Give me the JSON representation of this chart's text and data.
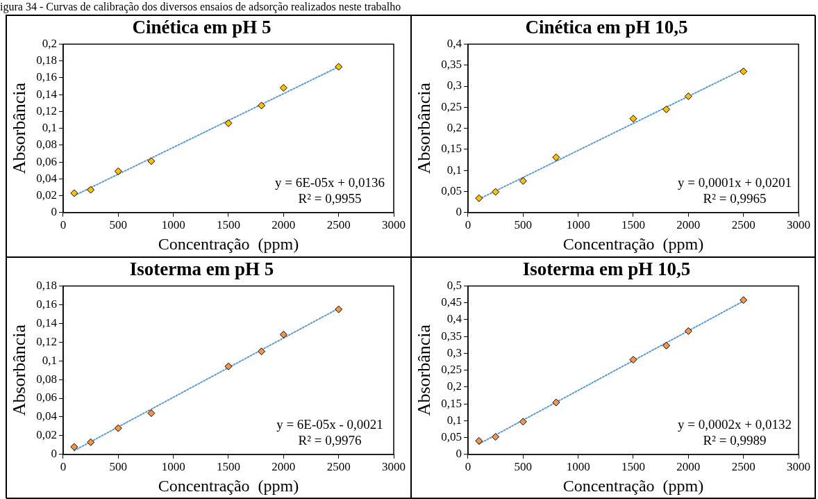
{
  "chart_data": [
    {
      "type": "scatter",
      "title": "Cinética em pH 5",
      "xlabel": "Concentração  (ppm)",
      "ylabel": "Absorbância",
      "annotations": [
        "igura 34 - Curvas de calibração dos diversos ensaios de adsorção realizados neste trabalho",
        "y = 6E-05x + 0,0136",
        "R² = 0,9955"
      ],
      "series": [
        {
          "type": "scatter",
          "marker": "diamond",
          "color": "#ffc000",
          "x": [
            100,
            250,
            500,
            800,
            1500,
            1800,
            2000,
            2500
          ],
          "values": [
            0.023,
            0.027,
            0.049,
            0.061,
            0.106,
            0.127,
            0.148,
            0.173
          ]
        },
        {
          "type": "line",
          "marker": "none",
          "line_style": "dotted",
          "color": "#5b9bd5",
          "x": [
            100,
            2500
          ],
          "values": [
            0.02,
            0.173
          ]
        }
      ],
      "xlim": [
        0,
        3000
      ],
      "xticks": [
        0,
        500,
        1000,
        1500,
        2000,
        2500,
        3000
      ],
      "ylim": [
        0,
        0.2
      ],
      "yticks": [
        {
          "value": 0,
          "label": "0"
        },
        {
          "value": 0.02,
          "label": "0,02"
        },
        {
          "value": 0.04,
          "label": "0,04"
        },
        {
          "value": 0.06,
          "label": "0,06"
        },
        {
          "value": 0.08,
          "label": "0,08"
        },
        {
          "value": 0.1,
          "label": "0,1"
        },
        {
          "value": 0.12,
          "label": "0,12"
        },
        {
          "value": 0.14,
          "label": "0,14"
        },
        {
          "value": 0.16,
          "label": "0,16"
        },
        {
          "value": 0.18,
          "label": "0,18"
        },
        {
          "value": 0.2,
          "label": "0,2"
        }
      ],
      "grid": false,
      "legend": false
    },
    {
      "type": "scatter",
      "title": "Cinética em pH 10,5",
      "xlabel": "Concentração  (ppm)",
      "ylabel": "Absorbância",
      "annotations": [
        "y = 0,0001x + 0,0201",
        "R² = 0,9965"
      ],
      "series": [
        {
          "type": "scatter",
          "marker": "diamond",
          "color": "#ffc000",
          "x": [
            100,
            250,
            500,
            800,
            1500,
            1800,
            2000,
            2500
          ],
          "values": [
            0.034,
            0.049,
            0.075,
            0.131,
            0.223,
            0.245,
            0.276,
            0.335
          ]
        },
        {
          "type": "line",
          "marker": "none",
          "line_style": "dotted",
          "color": "#5b9bd5",
          "x": [
            100,
            2500
          ],
          "values": [
            0.032,
            0.34
          ]
        }
      ],
      "xlim": [
        0,
        3000
      ],
      "xticks": [
        0,
        500,
        1000,
        1500,
        2000,
        2500,
        3000
      ],
      "ylim": [
        0,
        0.4
      ],
      "yticks": [
        {
          "value": 0,
          "label": "0"
        },
        {
          "value": 0.05,
          "label": "0,05"
        },
        {
          "value": 0.1,
          "label": "0,1"
        },
        {
          "value": 0.15,
          "label": "0,15"
        },
        {
          "value": 0.2,
          "label": "0,2"
        },
        {
          "value": 0.25,
          "label": "0,25"
        },
        {
          "value": 0.3,
          "label": "0,3"
        },
        {
          "value": 0.35,
          "label": "0,35"
        },
        {
          "value": 0.4,
          "label": "0,4"
        }
      ],
      "grid": false,
      "legend": false
    },
    {
      "type": "scatter",
      "title": "Isoterma em pH 5",
      "xlabel": "Concentração  (ppm)",
      "ylabel": "Absorbância",
      "annotations": [
        "y = 6E-05x - 0,0021",
        "R² = 0,9976"
      ],
      "series": [
        {
          "type": "scatter",
          "marker": "diamond",
          "color": "#f79646",
          "x": [
            100,
            250,
            500,
            800,
            1500,
            1800,
            2000,
            2500
          ],
          "values": [
            0.008,
            0.013,
            0.028,
            0.044,
            0.094,
            0.11,
            0.128,
            0.155
          ]
        },
        {
          "type": "line",
          "marker": "none",
          "line_style": "dotted",
          "color": "#5b9bd5",
          "x": [
            100,
            2500
          ],
          "values": [
            0.004,
            0.156
          ]
        }
      ],
      "xlim": [
        0,
        3000
      ],
      "xticks": [
        0,
        500,
        1000,
        1500,
        2000,
        2500,
        3000
      ],
      "ylim": [
        0,
        0.18
      ],
      "yticks": [
        {
          "value": 0,
          "label": "0"
        },
        {
          "value": 0.02,
          "label": "0,02"
        },
        {
          "value": 0.04,
          "label": "0,04"
        },
        {
          "value": 0.06,
          "label": "0,06"
        },
        {
          "value": 0.08,
          "label": "0,08"
        },
        {
          "value": 0.1,
          "label": "0,1"
        },
        {
          "value": 0.12,
          "label": "0,12"
        },
        {
          "value": 0.14,
          "label": "0,14"
        },
        {
          "value": 0.16,
          "label": "0,16"
        },
        {
          "value": 0.18,
          "label": "0,18"
        }
      ],
      "grid": false,
      "legend": false
    },
    {
      "type": "scatter",
      "title": "Isoterma em pH 10,5",
      "xlabel": "Concentração  (ppm)",
      "ylabel": "Absorbância",
      "annotations": [
        "y = 0,0002x + 0,0132",
        "R² = 0,9989"
      ],
      "series": [
        {
          "type": "scatter",
          "marker": "diamond",
          "color": "#f79646",
          "x": [
            100,
            250,
            500,
            800,
            1500,
            1800,
            2000,
            2500
          ],
          "values": [
            0.04,
            0.052,
            0.097,
            0.154,
            0.281,
            0.323,
            0.366,
            0.458
          ]
        },
        {
          "type": "line",
          "marker": "none",
          "line_style": "dotted",
          "color": "#5b9bd5",
          "x": [
            100,
            2500
          ],
          "values": [
            0.031,
            0.455
          ]
        }
      ],
      "xlim": [
        0,
        3000
      ],
      "xticks": [
        0,
        500,
        1000,
        1500,
        2000,
        2500,
        3000
      ],
      "ylim": [
        0,
        0.5
      ],
      "yticks": [
        {
          "value": 0,
          "label": "0"
        },
        {
          "value": 0.05,
          "label": "0,05"
        },
        {
          "value": 0.1,
          "label": "0,1"
        },
        {
          "value": 0.15,
          "label": "0,15"
        },
        {
          "value": 0.2,
          "label": "0,2"
        },
        {
          "value": 0.25,
          "label": "0,25"
        },
        {
          "value": 0.3,
          "label": "0,3"
        },
        {
          "value": 0.35,
          "label": "0,35"
        },
        {
          "value": 0.4,
          "label": "0,4"
        },
        {
          "value": 0.45,
          "label": "0,45"
        },
        {
          "value": 0.5,
          "label": "0,5"
        }
      ],
      "grid": false,
      "legend": false
    }
  ]
}
